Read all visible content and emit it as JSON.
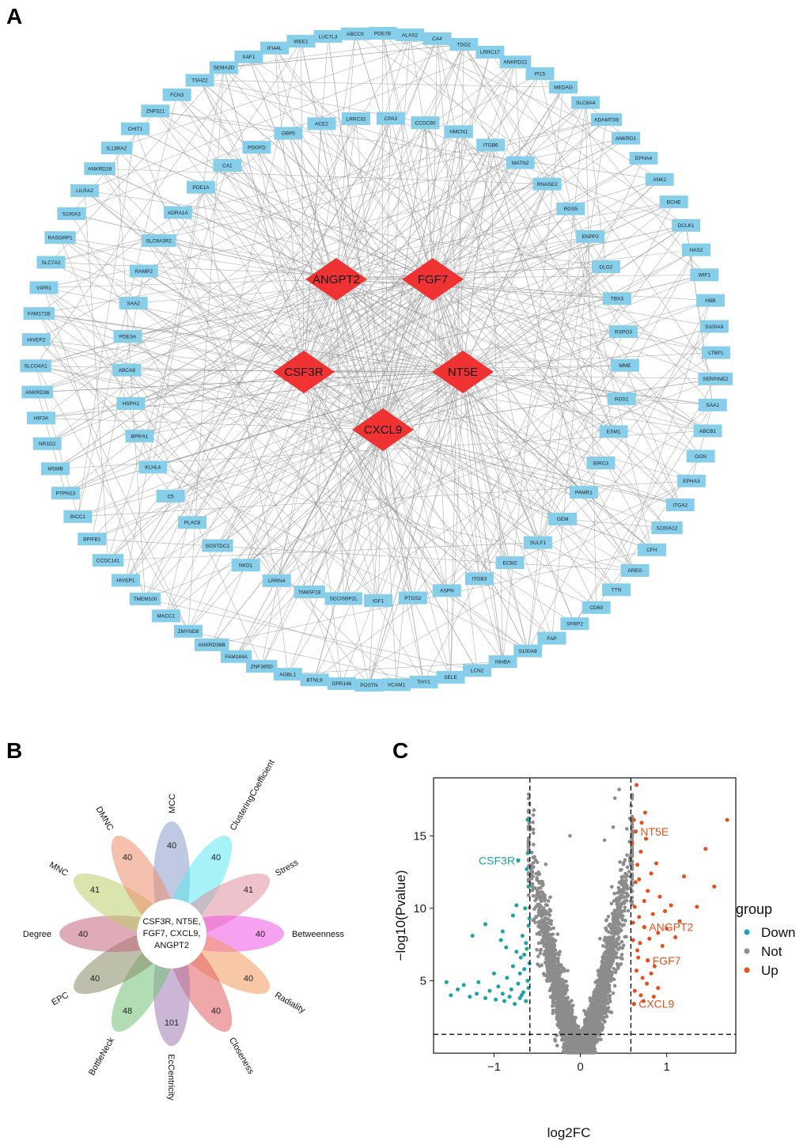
{
  "panels": {
    "a": "A",
    "b": "B",
    "c": "C"
  },
  "colors": {
    "node": "#87ceeb",
    "hub": "#f03232",
    "edge": "#9a9a9a",
    "down": "#1ba3aa",
    "not": "#8c8c8c",
    "up": "#e84e1b"
  },
  "network": {
    "hubs": [
      "ANGPT2",
      "FGF7",
      "CSF3R",
      "NT5E",
      "CXCL9"
    ],
    "outer_ring": [
      "PDE7B",
      "ALAS2",
      "CA4",
      "TDO2",
      "LRRC17",
      "ANKRD22",
      "PI15",
      "MEDAG",
      "SLC6A4",
      "ADAMTS9",
      "ANKRD1",
      "EPHA4",
      "ANK2",
      "BCHE",
      "DCLK1",
      "HAS2",
      "WIF1",
      "HBB",
      "S100A9",
      "LTBP1",
      "SERPINE2",
      "SAA1",
      "ABCB1",
      "OGN",
      "EPHA3",
      "ITGA2",
      "S100A12",
      "CFH",
      "AREG",
      "TTN",
      "CD69",
      "SFRP2",
      "FAP",
      "S100A8",
      "INHBA",
      "LCN2",
      "SELE",
      "THY1",
      "VCAM1",
      "POSTN",
      "GPR146",
      "BTNL9",
      "AGBL1",
      "ZNF385D",
      "FAM184A",
      "ANKRD36B",
      "ZMYND8",
      "MACC1",
      "TMEM100",
      "HIVEP1",
      "CCDC141",
      "BPIFB1",
      "BICC1",
      "PTPN13",
      "MSMB",
      "NR1D2",
      "HIF3A",
      "ANKRD36",
      "SLCO4A1",
      "HIVEP2",
      "FAM171B",
      "VIPR1",
      "SLC7A2",
      "RASGRP1",
      "S100A3",
      "LILRA2",
      "ANKRD28",
      "IL13RA2",
      "CHIT1",
      "ZNF521",
      "FCN3",
      "TSHZ2",
      "SEMA3D",
      "XAF1",
      "IFI44L",
      "WEE1",
      "LUC7L3",
      "ABCC9"
    ],
    "inner_ring": [
      "CPA3",
      "CCDC80",
      "HMCN1",
      "ITGB6",
      "MATN2",
      "RNASE2",
      "RGS5",
      "ENPP2",
      "DLG2",
      "TBX3",
      "RSPO3",
      "MME",
      "RGS1",
      "ESM1",
      "BIRC3",
      "PAMR1",
      "GEM",
      "SULF1",
      "ECM2",
      "ITGB3",
      "ASPN",
      "PTGS2",
      "IGF1",
      "SECISBP2L",
      "TM4SF18",
      "LRRN4",
      "NKD1",
      "SOSTDC1",
      "PLAC8",
      "C5",
      "KLHL4",
      "BPIFA1",
      "HSPH1",
      "ABCA8",
      "PDE3A",
      "SAA2",
      "RAMP2",
      "SLC9A3R2",
      "ADRA1A",
      "PDE1A",
      "CA1",
      "PDGFD",
      "GBP5",
      "ACE2",
      "LRRC32"
    ]
  },
  "flower": {
    "core_text": [
      "CSF3R, NT5E,",
      "FGF7, CXCL9,",
      "ANGPT2"
    ],
    "petals": [
      {
        "name": "MCC",
        "count": "40",
        "color": "#8a9ccb"
      },
      {
        "name": "ClusteringCoefficient",
        "count": "40",
        "color": "#5ce8ee"
      },
      {
        "name": "Stress",
        "count": "41",
        "color": "#e0909e"
      },
      {
        "name": "Betweenness",
        "count": "40",
        "color": "#f154e6"
      },
      {
        "name": "Radiality",
        "count": "40",
        "color": "#f39a5c"
      },
      {
        "name": "Closeness",
        "count": "40",
        "color": "#e25e64"
      },
      {
        "name": "EcCentricity",
        "count": "101",
        "color": "#a17cb3"
      },
      {
        "name": "BottleNeck",
        "count": "48",
        "color": "#72c176"
      },
      {
        "name": "EPC",
        "count": "40",
        "color": "#868a64"
      },
      {
        "name": "Degree",
        "count": "40",
        "color": "#c5667e"
      },
      {
        "name": "MNC",
        "count": "41",
        "color": "#b9cf6a"
      },
      {
        "name": "DMNC",
        "count": "40",
        "color": "#ee8c6e"
      }
    ]
  },
  "chart_data": {
    "type": "scatter",
    "title": "",
    "xlabel": "log2FC",
    "ylabel": "−log10(Pvalue)",
    "xlim": [
      -1.7,
      1.8
    ],
    "ylim": [
      0,
      19
    ],
    "xticks": [
      -1,
      0,
      1
    ],
    "xtick_labels": [
      "−1",
      "0",
      "1"
    ],
    "yticks": [
      5,
      10,
      15
    ],
    "ytick_labels": [
      "5",
      "10",
      "15"
    ],
    "thresholds": {
      "x": [
        -0.585,
        0.585
      ],
      "y": 1.3
    },
    "legend": {
      "title": "group",
      "entries": [
        "Down",
        "Not",
        "Up"
      ],
      "position": "right"
    },
    "labeled_genes": [
      {
        "gene": "CSF3R",
        "x": -0.72,
        "y": 13.3,
        "group": "Down"
      },
      {
        "gene": "NT5E",
        "x": 0.64,
        "y": 15.3,
        "group": "Up"
      },
      {
        "gene": "ANGPT2",
        "x": 0.74,
        "y": 8.7,
        "group": "Up"
      },
      {
        "gene": "FGF7",
        "x": 0.78,
        "y": 6.4,
        "group": "Up"
      },
      {
        "gene": "CXCL9",
        "x": 0.62,
        "y": 3.4,
        "group": "Up"
      }
    ],
    "series": [
      {
        "name": "Down",
        "points": [
          [
            -1.55,
            4.9
          ],
          [
            -1.5,
            4.0
          ],
          [
            -1.42,
            4.4
          ],
          [
            -1.35,
            4.7
          ],
          [
            -1.28,
            3.9
          ],
          [
            -1.2,
            4.1
          ],
          [
            -1.18,
            4.9
          ],
          [
            -1.1,
            3.8
          ],
          [
            -1.05,
            4.3
          ],
          [
            -1.0,
            5.5
          ],
          [
            -0.98,
            3.7
          ],
          [
            -0.95,
            4.6
          ],
          [
            -0.92,
            7.8
          ],
          [
            -0.9,
            4.1
          ],
          [
            -0.88,
            3.6
          ],
          [
            -0.85,
            5.2
          ],
          [
            -0.82,
            3.9
          ],
          [
            -0.8,
            4.4
          ],
          [
            -0.78,
            6.0
          ],
          [
            -0.76,
            3.4
          ],
          [
            -0.74,
            7.0
          ],
          [
            -0.72,
            4.8
          ],
          [
            -0.7,
            3.8
          ],
          [
            -0.69,
            6.6
          ],
          [
            -0.67,
            8.1
          ],
          [
            -0.66,
            4.2
          ],
          [
            -0.65,
            5.8
          ],
          [
            -0.64,
            10.0
          ],
          [
            -0.63,
            3.6
          ],
          [
            -0.62,
            7.2
          ],
          [
            -0.62,
            12.7
          ],
          [
            -0.61,
            5.0
          ],
          [
            -0.61,
            16.1
          ],
          [
            -0.6,
            4.5
          ],
          [
            -0.6,
            8.8
          ],
          [
            -0.6,
            11.5
          ],
          [
            -0.59,
            6.2
          ],
          [
            -0.59,
            9.3
          ],
          [
            -0.61,
            13.8
          ],
          [
            -0.63,
            7.6
          ],
          [
            -0.65,
            6.8
          ],
          [
            -0.68,
            4.0
          ],
          [
            -0.7,
            5.5
          ],
          [
            -0.72,
            13.3
          ],
          [
            -1.1,
            8.9
          ],
          [
            -1.25,
            8.1
          ],
          [
            -0.86,
            7.3
          ],
          [
            -0.9,
            8.4
          ],
          [
            -0.78,
            9.5
          ],
          [
            -0.74,
            10.2
          ]
        ]
      },
      {
        "name": "Up",
        "points": [
          [
            0.62,
            3.4
          ],
          [
            0.64,
            15.3
          ],
          [
            0.74,
            8.7
          ],
          [
            0.78,
            6.4
          ],
          [
            0.6,
            14.5
          ],
          [
            0.62,
            16.1
          ],
          [
            0.65,
            18.5
          ],
          [
            0.63,
            10.1
          ],
          [
            0.61,
            9.0
          ],
          [
            0.66,
            7.1
          ],
          [
            0.68,
            12.0
          ],
          [
            0.7,
            13.9
          ],
          [
            0.72,
            5.2
          ],
          [
            0.74,
            10.5
          ],
          [
            0.76,
            14.8
          ],
          [
            0.78,
            11.2
          ],
          [
            0.8,
            7.9
          ],
          [
            0.82,
            12.4
          ],
          [
            0.84,
            9.6
          ],
          [
            0.86,
            6.0
          ],
          [
            0.88,
            13.1
          ],
          [
            0.9,
            8.3
          ],
          [
            0.92,
            10.8
          ],
          [
            0.95,
            7.4
          ],
          [
            0.98,
            9.8
          ],
          [
            1.0,
            8.6
          ],
          [
            1.05,
            10.2
          ],
          [
            1.1,
            8.0
          ],
          [
            1.15,
            9.1
          ],
          [
            1.2,
            12.2
          ],
          [
            1.35,
            10.1
          ],
          [
            1.45,
            14.1
          ],
          [
            1.55,
            11.5
          ],
          [
            1.7,
            16.1
          ],
          [
            0.63,
            4.3
          ],
          [
            0.65,
            5.7
          ],
          [
            0.67,
            6.6
          ],
          [
            0.61,
            7.8
          ],
          [
            0.7,
            4.0
          ],
          [
            0.73,
            3.6
          ],
          [
            0.77,
            4.8
          ],
          [
            0.82,
            5.5
          ],
          [
            0.85,
            3.9
          ],
          [
            0.9,
            4.5
          ],
          [
            0.68,
            9.4
          ],
          [
            0.64,
            11.8
          ],
          [
            0.66,
            13.0
          ],
          [
            0.71,
            15.9
          ],
          [
            0.75,
            16.6
          ],
          [
            0.69,
            7.6
          ]
        ]
      },
      {
        "name": "Not",
        "n_points": 3500,
        "description": "volcano-shaped cloud between the log2FC thresholds"
      }
    ]
  }
}
